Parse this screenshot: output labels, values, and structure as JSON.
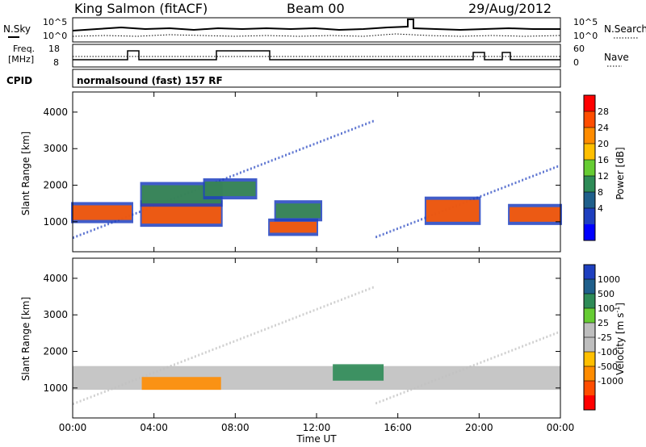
{
  "header": {
    "station": "King Salmon (fitACF)",
    "beam": "Beam 00",
    "date": "29/Aug/2012"
  },
  "top_panels": {
    "nsky_label": "N.Sky",
    "nsearch_label": "N.Search",
    "noise_ticks_left": [
      "10^5",
      "10^0"
    ],
    "noise_ticks_right": [
      "10^5",
      "10^0"
    ],
    "freq_label_line1": "Freq.",
    "freq_label_line2": "[MHz]",
    "freq_ticks": [
      "18",
      "8"
    ],
    "nave_label": "Nave",
    "nave_ticks": [
      "60",
      "0"
    ],
    "cpid_label": "CPID",
    "cpid_text": "normalsound (fast) 157 RF"
  },
  "chart_data": [
    {
      "type": "heatmap",
      "ylabel": "Slant Range [km]",
      "xlabel": "",
      "ylim": [
        180,
        4550
      ],
      "yticks": [
        "4000",
        "3000",
        "2000",
        "1000"
      ],
      "colorbar": {
        "label": "Power [dB]",
        "ticks": [
          "28",
          "24",
          "20",
          "16",
          "12",
          "8",
          "4"
        ],
        "colors": [
          "#ff0000",
          "#ff4d00",
          "#ff8c00",
          "#ffbf00",
          "#66cc33",
          "#2e8b57",
          "#1f5f8b",
          "#1e3fbf",
          "#0000ff"
        ]
      },
      "bands": [
        {
          "x": [
            0,
            2.9
          ],
          "y": [
            1050,
            1450
          ],
          "level": "high"
        },
        {
          "x": [
            3.4,
            7.3
          ],
          "y": [
            950,
            1500
          ],
          "level": "high"
        },
        {
          "x": [
            3.4,
            7.3
          ],
          "y": [
            1500,
            2000
          ],
          "level": "medium"
        },
        {
          "x": [
            6.5,
            9.0
          ],
          "y": [
            1700,
            2100
          ],
          "level": "medium"
        },
        {
          "x": [
            9.7,
            12.0
          ],
          "y": [
            700,
            1000
          ],
          "level": "high"
        },
        {
          "x": [
            10.0,
            12.2
          ],
          "y": [
            1100,
            1500
          ],
          "level": "medium"
        },
        {
          "x": [
            17.4,
            20.0
          ],
          "y": [
            1000,
            1600
          ],
          "level": "high"
        },
        {
          "x": [
            21.5,
            24.0
          ],
          "y": [
            1000,
            1400
          ],
          "level": "high"
        }
      ]
    },
    {
      "type": "heatmap",
      "ylabel": "Slant Range [km]",
      "xlabel": "Time UT",
      "ylim": [
        180,
        4550
      ],
      "yticks": [
        "4000",
        "3000",
        "2000",
        "1000"
      ],
      "xticks": [
        "00:00",
        "04:00",
        "08:00",
        "12:00",
        "16:00",
        "20:00",
        "00:00"
      ],
      "colorbar": {
        "label": "Velocity [m s",
        "label_sup": "-1",
        "label_end": "]",
        "ticks": [
          "1000",
          "500",
          "100",
          "25",
          "-25",
          "-100",
          "-500",
          "-1000"
        ],
        "colors": [
          "#1e3fbf",
          "#1f5f8b",
          "#2e8b57",
          "#66cc33",
          "#bebebe",
          "#bebebe",
          "#ffbf00",
          "#ff8c00",
          "#ff4d00",
          "#ff0000"
        ]
      },
      "bands": [
        {
          "x": [
            0,
            24.0
          ],
          "y": [
            950,
            1600
          ],
          "level": "ground"
        },
        {
          "x": [
            3.4,
            7.3
          ],
          "y": [
            950,
            1300
          ],
          "level": "negative"
        },
        {
          "x": [
            12.8,
            15.3
          ],
          "y": [
            1200,
            1650
          ],
          "level": "positive"
        }
      ]
    }
  ]
}
